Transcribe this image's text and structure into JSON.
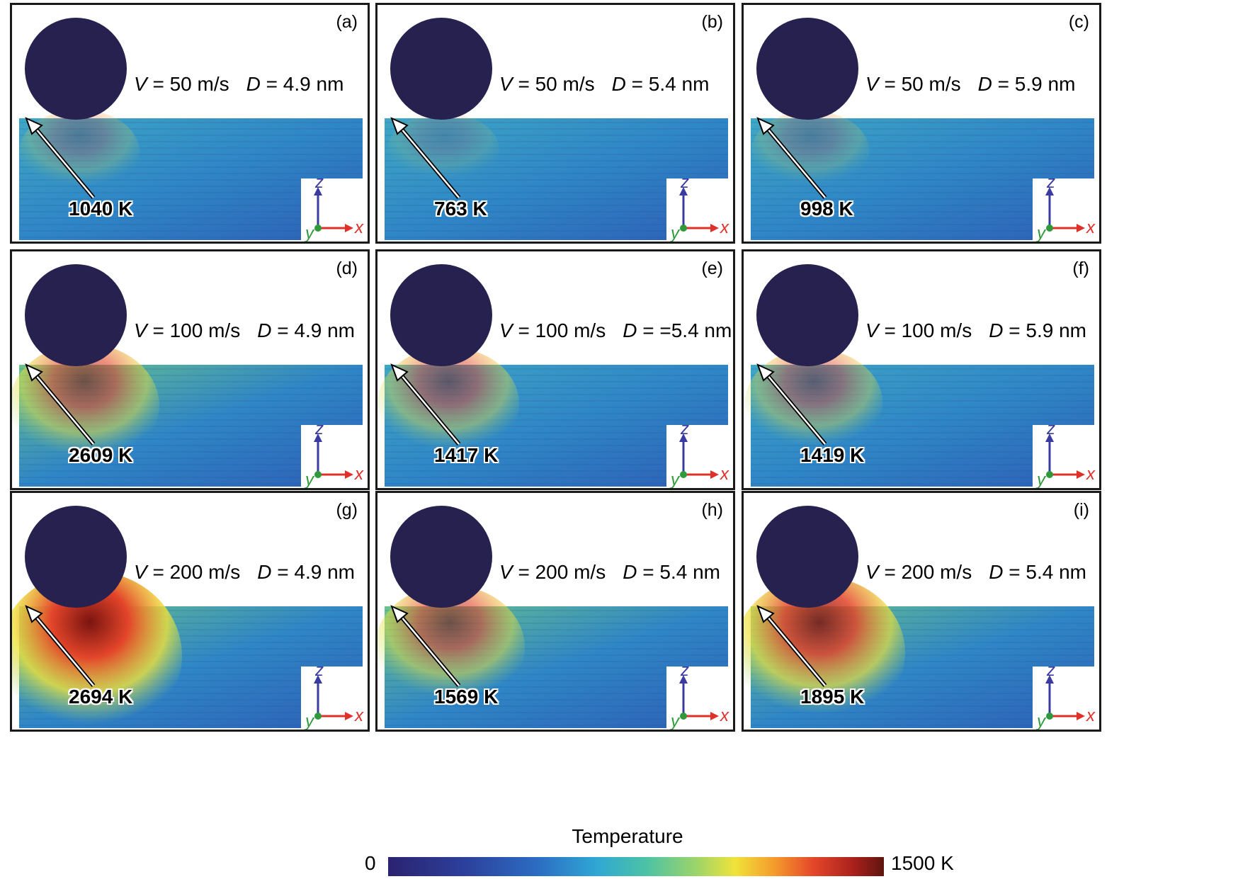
{
  "panels": [
    {
      "label": "(a)",
      "V": "50 m/s",
      "D": "4.9 nm",
      "peak_temp": "1040 K",
      "heat": 0.25
    },
    {
      "label": "(b)",
      "V": "50 m/s",
      "D": "5.4 nm",
      "peak_temp": "763 K",
      "heat": 0.15
    },
    {
      "label": "(c)",
      "V": "50 m/s",
      "D": "5.9 nm",
      "peak_temp": "998 K",
      "heat": 0.22
    },
    {
      "label": "(d)",
      "V": "100 m/s",
      "D": "4.9 nm",
      "peak_temp": "2609 K",
      "heat": 0.6
    },
    {
      "label": "(e)",
      "V": "100 m/s",
      "D": "=5.4 nm",
      "peak_temp": "1417 K",
      "heat": 0.5
    },
    {
      "label": "(f)",
      "V": "100 m/s",
      "D": "5.9 nm",
      "peak_temp": "1419 K",
      "heat": 0.45
    },
    {
      "label": "(g)",
      "V": "200 m/s",
      "D": "4.9 nm",
      "peak_temp": "2694 K",
      "heat": 1.0
    },
    {
      "label": "(h)",
      "V": "200 m/s",
      "D": "5.4 nm",
      "peak_temp": "1569 K",
      "heat": 0.6
    },
    {
      "label": "(i)",
      "V": "200 m/s",
      "D": "5.4 nm",
      "peak_temp": "1895 K",
      "heat": 0.85
    }
  ],
  "param_text": {
    "V_symbol": "V",
    "D_symbol": "D",
    "equals": " = "
  },
  "axes": {
    "z": "z",
    "x": "x",
    "y": "y"
  },
  "colorbar": {
    "title": "Temperature",
    "min": "0",
    "max": "1500 K",
    "colors": [
      "#2b2270",
      "#2c3f9a",
      "#2c6cc2",
      "#2fa7d4",
      "#4cc2a6",
      "#9bd46a",
      "#f0e33a",
      "#f59a2c",
      "#e3452a",
      "#a8201b",
      "#5e1510"
    ]
  },
  "sphere_color": "#26214f"
}
